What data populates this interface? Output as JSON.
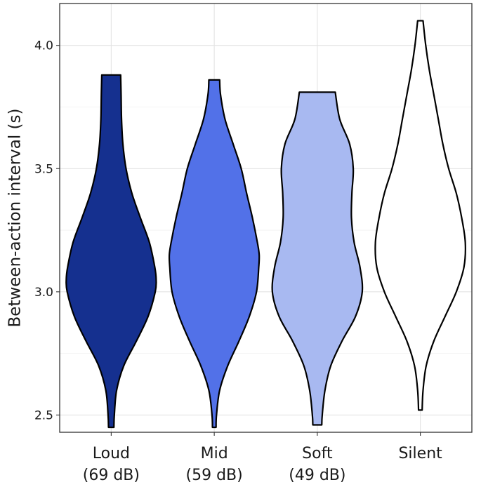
{
  "chart_data": {
    "type": "violin",
    "ylabel": "Between-action interval (s)",
    "xlabel": "",
    "ylim": [
      2.43,
      4.17
    ],
    "yticks": [
      "2.5",
      "3.0",
      "3.5",
      "4.0"
    ],
    "grid": true,
    "legend": "none",
    "categories": [
      {
        "line1": "Loud",
        "line2": "(69 dB)"
      },
      {
        "line1": "Mid",
        "line2": "(59 dB)"
      },
      {
        "line1": "Soft",
        "line2": "(49 dB)"
      },
      {
        "line1": "Silent",
        "line2": ""
      }
    ],
    "series": [
      {
        "fill": "#15308f",
        "min": 2.45,
        "max": 3.88,
        "density": [
          [
            2.45,
            0.06
          ],
          [
            2.5,
            0.07
          ],
          [
            2.6,
            0.12
          ],
          [
            2.7,
            0.28
          ],
          [
            2.8,
            0.56
          ],
          [
            2.9,
            0.82
          ],
          [
            3.0,
            0.98
          ],
          [
            3.05,
            1.0
          ],
          [
            3.1,
            0.97
          ],
          [
            3.2,
            0.85
          ],
          [
            3.3,
            0.65
          ],
          [
            3.4,
            0.46
          ],
          [
            3.5,
            0.33
          ],
          [
            3.6,
            0.26
          ],
          [
            3.7,
            0.23
          ],
          [
            3.8,
            0.22
          ],
          [
            3.88,
            0.21
          ]
        ]
      },
      {
        "fill": "#5271e8",
        "min": 2.45,
        "max": 3.86,
        "density": [
          [
            2.45,
            0.04
          ],
          [
            2.5,
            0.05
          ],
          [
            2.6,
            0.12
          ],
          [
            2.7,
            0.3
          ],
          [
            2.8,
            0.55
          ],
          [
            2.9,
            0.78
          ],
          [
            3.0,
            0.94
          ],
          [
            3.1,
            0.99
          ],
          [
            3.15,
            1.0
          ],
          [
            3.2,
            0.96
          ],
          [
            3.3,
            0.85
          ],
          [
            3.4,
            0.72
          ],
          [
            3.5,
            0.6
          ],
          [
            3.6,
            0.42
          ],
          [
            3.7,
            0.24
          ],
          [
            3.8,
            0.14
          ],
          [
            3.86,
            0.12
          ]
        ]
      },
      {
        "fill": "#a8b9f1",
        "min": 2.46,
        "max": 3.81,
        "density": [
          [
            2.46,
            0.1
          ],
          [
            2.5,
            0.11
          ],
          [
            2.6,
            0.17
          ],
          [
            2.7,
            0.3
          ],
          [
            2.8,
            0.55
          ],
          [
            2.9,
            0.85
          ],
          [
            3.0,
            1.0
          ],
          [
            3.1,
            0.95
          ],
          [
            3.2,
            0.82
          ],
          [
            3.3,
            0.76
          ],
          [
            3.4,
            0.77
          ],
          [
            3.5,
            0.8
          ],
          [
            3.6,
            0.72
          ],
          [
            3.7,
            0.5
          ],
          [
            3.81,
            0.4
          ]
        ]
      },
      {
        "fill": "#ffffff",
        "min": 2.52,
        "max": 4.1,
        "density": [
          [
            2.52,
            0.04
          ],
          [
            2.6,
            0.06
          ],
          [
            2.7,
            0.13
          ],
          [
            2.8,
            0.3
          ],
          [
            2.9,
            0.55
          ],
          [
            3.0,
            0.8
          ],
          [
            3.1,
            0.97
          ],
          [
            3.2,
            1.0
          ],
          [
            3.3,
            0.92
          ],
          [
            3.4,
            0.8
          ],
          [
            3.5,
            0.63
          ],
          [
            3.6,
            0.5
          ],
          [
            3.7,
            0.4
          ],
          [
            3.8,
            0.3
          ],
          [
            3.9,
            0.2
          ],
          [
            4.0,
            0.12
          ],
          [
            4.1,
            0.06
          ]
        ]
      }
    ]
  }
}
